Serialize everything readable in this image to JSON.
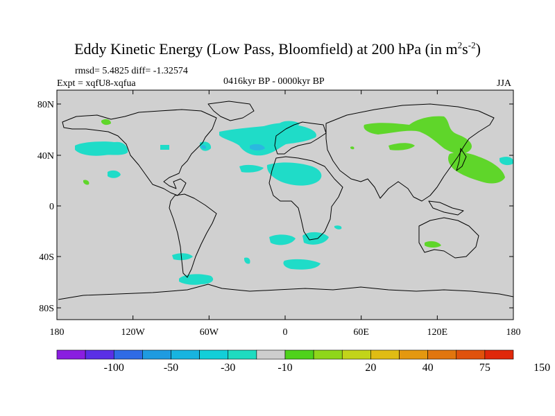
{
  "title": {
    "main": "Eddy Kinetic Energy (Low Pass, Bloomfield) at 200 hPa (in m",
    "sup1": "2",
    "mid": "s",
    "sup2": "-2",
    "end": ")"
  },
  "stats": "rmsd= 5.4825 diff= -1.32574",
  "experiment": "Expt = xqfU8-xqfua",
  "period": "0416kyr BP - 0000kyr BP",
  "season": "JJA",
  "lat_ticks": [
    "80N",
    "40N",
    "0",
    "40S",
    "80S"
  ],
  "lon_ticks": [
    "180",
    "120W",
    "60W",
    "0",
    "60E",
    "120E",
    "180"
  ],
  "colorbar": {
    "colors": [
      "#8a1ee0",
      "#5a2fe6",
      "#2f6be6",
      "#1f9be0",
      "#17b4e0",
      "#12cfd8",
      "#1fdcc0",
      "#cdcdcd",
      "#4fd21c",
      "#8fd61a",
      "#c2d41a",
      "#e0bc14",
      "#e49810",
      "#e2760e",
      "#e0520c",
      "#e0280a"
    ],
    "labels": [
      "-100",
      "-50",
      "-30",
      "-10",
      "20",
      "40",
      "75",
      "150"
    ]
  },
  "colors": {
    "land_ocean_bg": "#d0d0d0",
    "negative_fill": "#1fdcc8",
    "negative_deep": "#2ab8e0",
    "positive_fill": "#5fd62a"
  }
}
